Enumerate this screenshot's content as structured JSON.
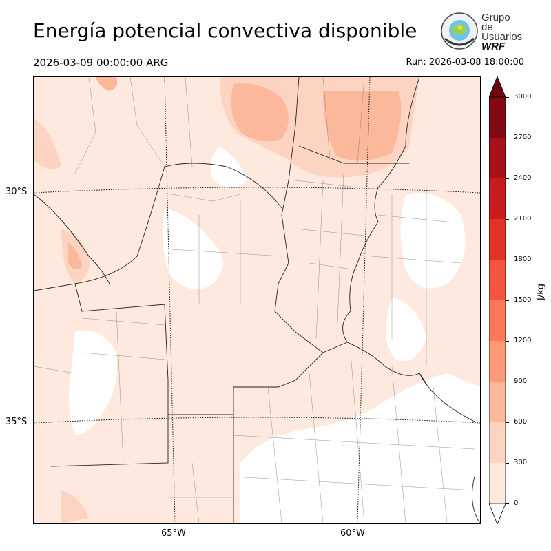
{
  "title": "Energía potencial convectiva disponible",
  "valid_time": "2026-03-09 00:00:00 ARG",
  "run_time": "Run: 2026-03-08 18:00:00",
  "logo": {
    "line1": "Grupo de",
    "line2": "Usuarios",
    "line3": "WRF"
  },
  "lat_labels": [
    "30°S",
    "35°S"
  ],
  "lon_labels": [
    "65°W",
    "60°W"
  ],
  "colorbar": {
    "unit": "J/kg",
    "ticks": [
      "0",
      "300",
      "600",
      "900",
      "1200",
      "1500",
      "1800",
      "2100",
      "2400",
      "2700",
      "3000"
    ],
    "colors": [
      "#fee9df",
      "#fdd4c2",
      "#fcb89b",
      "#fc9a78",
      "#fb7858",
      "#f4553f",
      "#e33327",
      "#c71b1e",
      "#a71218",
      "#800914"
    ]
  }
}
